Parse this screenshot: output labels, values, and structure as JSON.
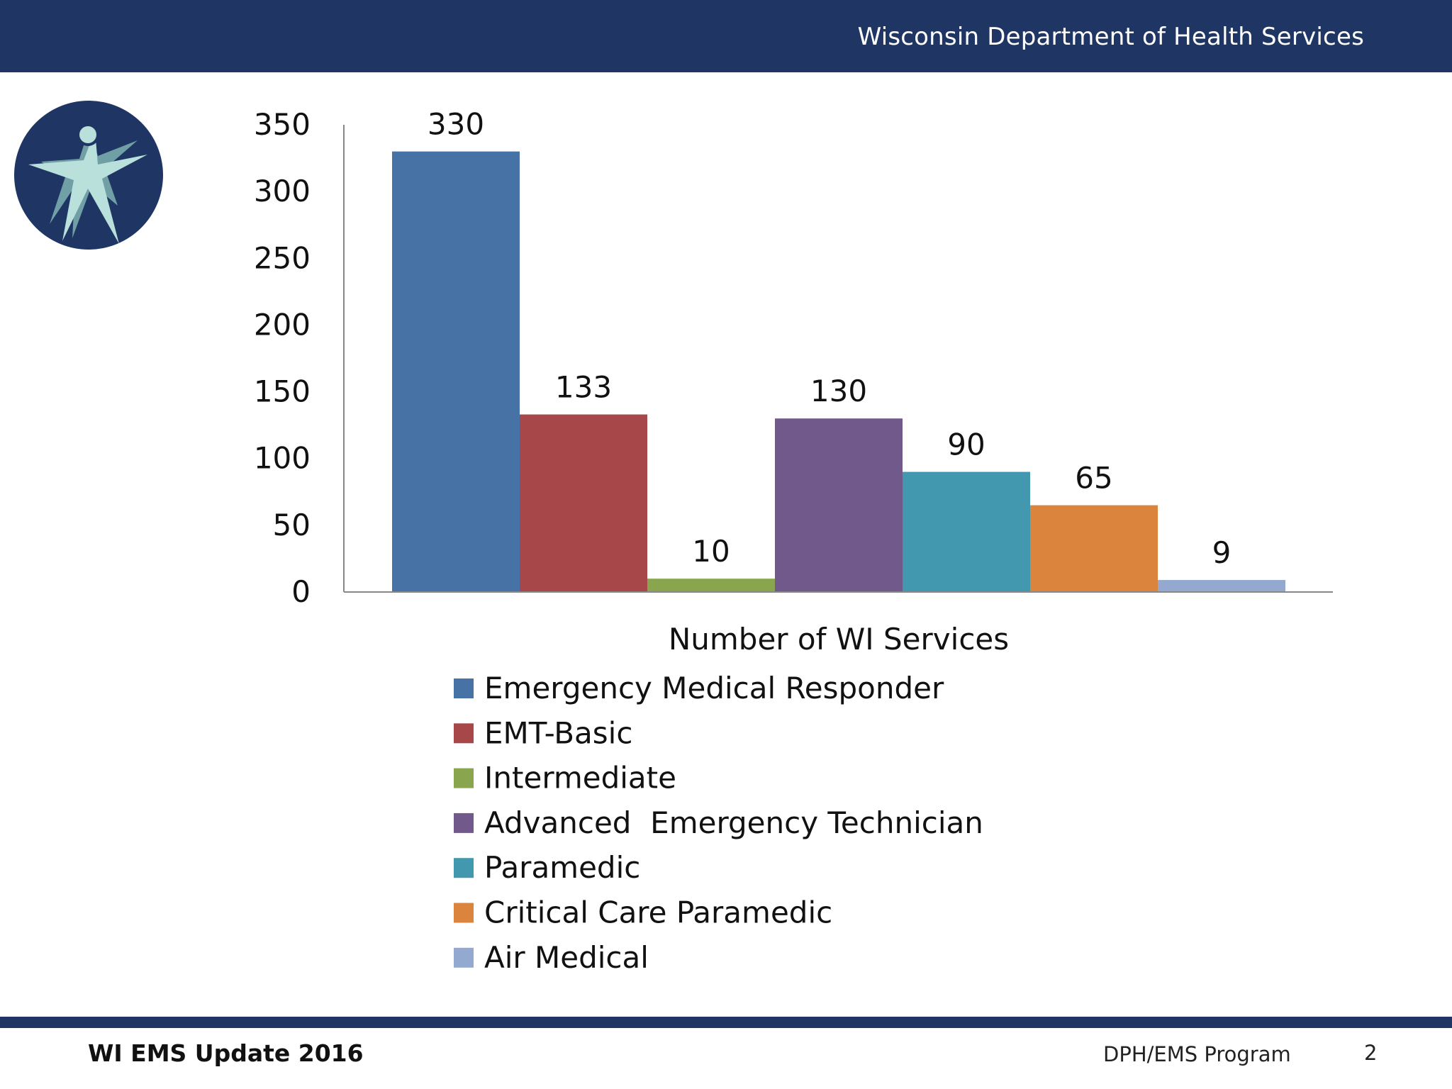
{
  "header": {
    "title": "Wisconsin Department of Health Services"
  },
  "footer": {
    "left_text": "WI EMS Update 2016",
    "right_text": "DPH/EMS Program",
    "page_number": "2"
  },
  "logo": {
    "icon": "dhs-figure-logo-icon",
    "background_color": "#1f3564",
    "figure_color": "#b9e0da"
  },
  "colors": {
    "header_bar": "#1f3564",
    "axis": "#888888",
    "text": "#111111"
  },
  "chart_data": {
    "type": "bar",
    "title": "",
    "xlabel": "Number of WI Services",
    "ylabel": "",
    "ylim": [
      0,
      350
    ],
    "yticks": [
      0,
      50,
      100,
      150,
      200,
      250,
      300,
      350
    ],
    "grid": false,
    "legend_position": "bottom",
    "series": [
      {
        "name": "Emergency Medical Responder",
        "value": 330,
        "label": "330",
        "color": "#4672a6"
      },
      {
        "name": "EMT-Basic",
        "value": 133,
        "label": "133",
        "color": "#a84749"
      },
      {
        "name": "Intermediate",
        "value": 10,
        "label": "10",
        "color": "#89a54e"
      },
      {
        "name": "Advanced  Emergency Technician",
        "value": 130,
        "label": "130",
        "color": "#72598c"
      },
      {
        "name": "Paramedic",
        "value": 90,
        "label": "90",
        "color": "#4198af"
      },
      {
        "name": "Critical Care Paramedic",
        "value": 65,
        "label": "65",
        "color": "#db843d"
      },
      {
        "name": "Air Medical",
        "value": 9,
        "label": "9",
        "color": "#93a9cf"
      }
    ]
  }
}
